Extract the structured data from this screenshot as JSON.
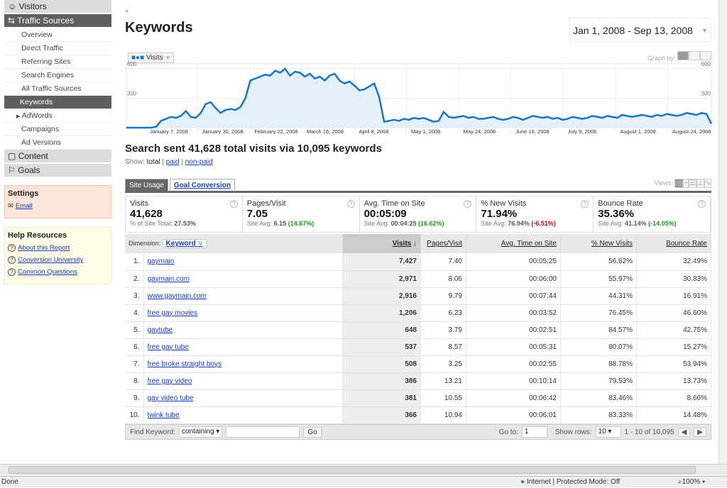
{
  "sidebar": {
    "visitors": "Visitors",
    "traffic_sources": "Traffic Sources",
    "sub": [
      "Overview",
      "Direct Traffic",
      "Referring Sites",
      "Search Engines",
      "All Traffic Sources",
      "Keywords",
      "AdWords",
      "Campaigns",
      "Ad Versions"
    ],
    "content": "Content",
    "goals": "Goals",
    "settings": {
      "title": "Settings",
      "email": "Email"
    },
    "help": {
      "title": "Help Resources",
      "items": [
        "About this Report",
        "Conversion University",
        "Common Questions"
      ]
    }
  },
  "header": {
    "title": "Keywords",
    "date_range": "Jan 1, 2008 - Sep 13, 2008",
    "graph_by": "Graph by:",
    "metric_selector": "Visits"
  },
  "chart_data": {
    "type": "area",
    "series": [
      {
        "name": "Visits",
        "values": [
          0,
          0,
          0,
          0,
          0,
          0,
          10,
          70,
          90,
          110,
          100,
          120,
          170,
          110,
          100,
          150,
          240,
          260,
          200,
          150,
          180,
          190,
          180,
          210,
          300,
          480,
          500,
          520,
          540,
          530,
          580,
          560,
          600,
          530,
          570,
          560,
          520,
          550,
          500,
          520,
          480,
          530,
          550,
          480,
          450,
          470,
          430,
          380,
          390,
          420,
          450,
          310,
          60,
          70,
          80,
          70,
          90,
          80,
          100,
          90,
          100,
          80,
          60,
          70,
          160,
          110,
          100,
          110,
          120,
          100,
          110,
          90,
          90,
          100,
          110,
          90,
          80,
          90,
          110,
          100,
          80,
          100,
          120,
          110,
          100,
          110,
          90,
          100,
          80,
          90,
          110,
          100,
          90,
          100,
          120,
          110,
          100,
          120,
          110,
          100,
          130,
          120,
          110,
          120,
          130,
          120,
          110,
          130,
          120,
          140,
          130,
          120,
          130,
          150,
          140,
          130,
          150,
          140,
          40
        ]
      }
    ],
    "start": "January 1, 2008",
    "x_ticks": [
      "January 7, 2008",
      "January 30, 2008",
      "February 22, 2008",
      "March 16, 2008",
      "April 8, 2008",
      "May 1, 2008",
      "May 24, 2008",
      "June 16, 2008",
      "July 9, 2008",
      "August 1, 2008",
      "August 24, 2008"
    ],
    "y_ticks": [
      "600",
      "300"
    ],
    "ylim": [
      0,
      650
    ],
    "grid": true
  },
  "summary": {
    "headline": "Search sent 41,628 total visits via 10,095 keywords",
    "show_label": "Show:",
    "show_total": "total",
    "show_paid": "paid",
    "show_nonpaid": "non-paid"
  },
  "tabs": [
    "Site Usage",
    "Goal Conversion"
  ],
  "views_label": "Views:",
  "metrics": [
    {
      "label": "Visits",
      "value": "41,628",
      "sub": "% of Site Total:",
      "avg": "27.53%",
      "delta": "",
      "cls": ""
    },
    {
      "label": "Pages/Visit",
      "value": "7.05",
      "sub": "Site Avg:",
      "avg": "6.15",
      "delta": "(14.67%)",
      "cls": "g"
    },
    {
      "label": "Avg. Time on Site",
      "value": "00:05:09",
      "sub": "Site Avg:",
      "avg": "00:04:25",
      "delta": "(16.62%)",
      "cls": "g"
    },
    {
      "label": "% New Visits",
      "value": "71.94%",
      "sub": "Site Avg:",
      "avg": "76.94%",
      "delta": "(-6.51%)",
      "cls": "r"
    },
    {
      "label": "Bounce Rate",
      "value": "35.36%",
      "sub": "Site Avg:",
      "avg": "41.14%",
      "delta": "(-14.05%)",
      "cls": "g"
    }
  ],
  "table": {
    "dimension_label": "Dimension:",
    "dimension": "Keyword",
    "columns": [
      "Visits",
      "Pages/Visit",
      "Avg. Time on Site",
      "% New Visits",
      "Bounce Rate"
    ],
    "rows": [
      [
        "1.",
        "gaymain",
        "7,427",
        "7.40",
        "00:05:25",
        "56.62%",
        "32.49%"
      ],
      [
        "2.",
        "gaymain.com",
        "2,971",
        "8.06",
        "00:06:00",
        "55.97%",
        "30.83%"
      ],
      [
        "3.",
        "www.gaymain.com",
        "2,916",
        "9.79",
        "00:07:44",
        "44.31%",
        "16.91%"
      ],
      [
        "4.",
        "free gay movies",
        "1,206",
        "6.23",
        "00:03:52",
        "76.45%",
        "46.60%"
      ],
      [
        "5.",
        "gaytube",
        "648",
        "3.79",
        "00:02:51",
        "84.57%",
        "42.75%"
      ],
      [
        "6.",
        "free gay tube",
        "537",
        "8.57",
        "00:05:31",
        "80.07%",
        "15.27%"
      ],
      [
        "7.",
        "free broke straight boys",
        "508",
        "3.25",
        "00:02:55",
        "88.78%",
        "53.94%"
      ],
      [
        "8.",
        "free gay video",
        "386",
        "13.21",
        "00:10:14",
        "79.53%",
        "13.73%"
      ],
      [
        "9.",
        "gay video tube",
        "381",
        "10.55",
        "00:06:42",
        "83.46%",
        "8.66%"
      ],
      [
        "10.",
        "twink tube",
        "366",
        "10.94",
        "00:06:01",
        "83.33%",
        "14.48%"
      ]
    ]
  },
  "footer": {
    "find_label": "Find Keyword:",
    "match": "containing",
    "go": "Go",
    "goto_label": "Go to:",
    "goto_value": "1",
    "rows_label": "Show rows:",
    "rows_value": "10",
    "range": "1 - 10 of 10,095"
  },
  "status": {
    "left": "Done",
    "zone": "Internet | Protected Mode: Off",
    "zoom": "100%"
  },
  "colors": {
    "line": "#1a75c9",
    "fill": "#e3eff9"
  }
}
